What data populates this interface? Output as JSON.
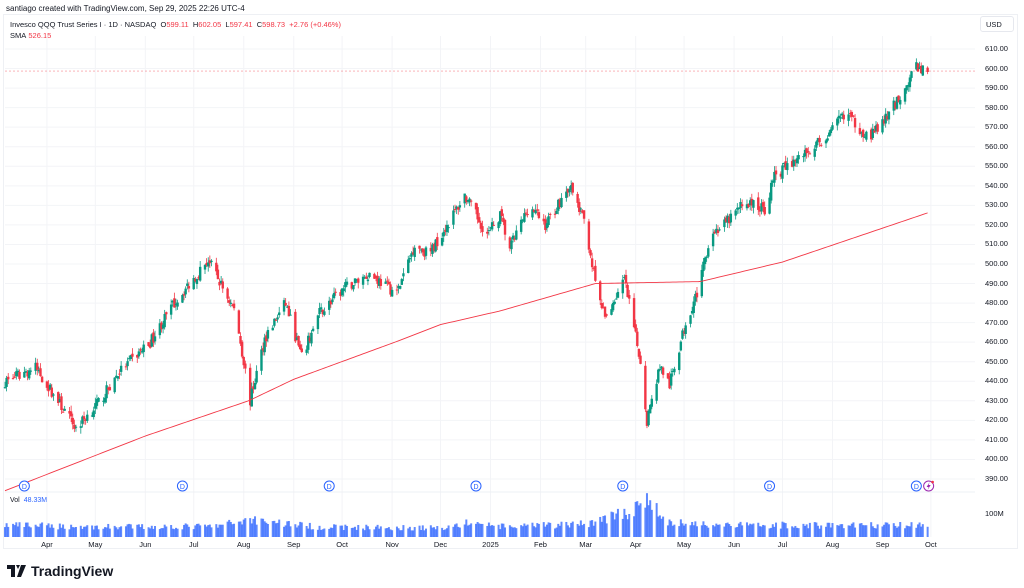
{
  "credit": "santiago created with TradingView.com, Sep 29, 2025 22:26 UTC-4",
  "legend": {
    "symbol": "Invesco QQQ Trust Series I · 1D · NASDAQ",
    "o_label": "O",
    "o": "599.11",
    "h_label": "H",
    "h": "602.05",
    "l_label": "L",
    "l": "597.41",
    "c_label": "C",
    "c": "598.73",
    "change": "+2.76 (+0.46%)",
    "sma_label": "SMA",
    "sma": "526.15"
  },
  "currency": "USD",
  "volume": {
    "label": "Vol",
    "value": "48.33M",
    "axis_label": "100M"
  },
  "logo": "TradingView",
  "colors": {
    "up": "#089981",
    "down": "#f23645",
    "sma": "#f23645",
    "volume": "#2962ff",
    "dividend": "#2962ff",
    "earnings": "#9c27b0"
  },
  "chart_data": {
    "type": "candlestick",
    "title": "Invesco QQQ Trust Series I · 1D · NASDAQ",
    "ylim": [
      385,
      615
    ],
    "y_ticks": [
      "610.00",
      "600.00",
      "590.00",
      "580.00",
      "570.00",
      "560.00",
      "550.00",
      "540.00",
      "530.00",
      "520.00",
      "510.00",
      "500.00",
      "490.00",
      "480.00",
      "470.00",
      "460.00",
      "450.00",
      "440.00",
      "430.00",
      "420.00",
      "410.00",
      "400.00",
      "390.00"
    ],
    "x_ticks": [
      {
        "label": "Apr",
        "date": "2024-04-01"
      },
      {
        "label": "May",
        "date": "2024-05-01"
      },
      {
        "label": "Jun",
        "date": "2024-06-01"
      },
      {
        "label": "Jul",
        "date": "2024-07-01"
      },
      {
        "label": "Aug",
        "date": "2024-08-01"
      },
      {
        "label": "Sep",
        "date": "2024-09-01"
      },
      {
        "label": "Oct",
        "date": "2024-10-01"
      },
      {
        "label": "Nov",
        "date": "2024-11-01"
      },
      {
        "label": "Dec",
        "date": "2024-12-01"
      },
      {
        "label": "2025",
        "date": "2025-01-01"
      },
      {
        "label": "Feb",
        "date": "2025-02-01"
      },
      {
        "label": "Mar",
        "date": "2025-03-01"
      },
      {
        "label": "Apr",
        "date": "2025-04-01"
      },
      {
        "label": "May",
        "date": "2025-05-01"
      },
      {
        "label": "Jun",
        "date": "2025-06-01"
      },
      {
        "label": "Jul",
        "date": "2025-07-01"
      },
      {
        "label": "Aug",
        "date": "2025-08-01"
      },
      {
        "label": "Sep",
        "date": "2025-09-01"
      },
      {
        "label": "Oct",
        "date": "2025-10-01"
      }
    ],
    "date_range": [
      "2024-03-06",
      "2025-09-29"
    ],
    "price_keypoints": [
      [
        "2024-03-06",
        440
      ],
      [
        "2024-03-25",
        447
      ],
      [
        "2024-04-19",
        416
      ],
      [
        "2024-05-04",
        430
      ],
      [
        "2024-05-16",
        445
      ],
      [
        "2024-06-04",
        460
      ],
      [
        "2024-06-19",
        480
      ],
      [
        "2024-07-10",
        502
      ],
      [
        "2024-07-27",
        475
      ],
      [
        "2024-08-05",
        430
      ],
      [
        "2024-08-14",
        462
      ],
      [
        "2024-08-27",
        480
      ],
      [
        "2024-09-06",
        452
      ],
      [
        "2024-09-17",
        475
      ],
      [
        "2024-10-03",
        488
      ],
      [
        "2024-10-18",
        495
      ],
      [
        "2024-11-04",
        485
      ],
      [
        "2024-11-15",
        510
      ],
      [
        "2024-11-24",
        505
      ],
      [
        "2024-12-16",
        535
      ],
      [
        "2024-12-30",
        515
      ],
      [
        "2025-01-07",
        525
      ],
      [
        "2025-01-13",
        508
      ],
      [
        "2025-01-25",
        530
      ],
      [
        "2025-02-04",
        520
      ],
      [
        "2025-02-19",
        540
      ],
      [
        "2025-03-01",
        520
      ],
      [
        "2025-03-07",
        490
      ],
      [
        "2025-03-13",
        472
      ],
      [
        "2025-03-25",
        492
      ],
      [
        "2025-04-04",
        450
      ],
      [
        "2025-04-08",
        420
      ],
      [
        "2025-04-16",
        448
      ],
      [
        "2025-04-22",
        438
      ],
      [
        "2025-05-02",
        470
      ],
      [
        "2025-05-11",
        490
      ],
      [
        "2025-05-17",
        515
      ],
      [
        "2025-05-26",
        520
      ],
      [
        "2025-06-08",
        532
      ],
      [
        "2025-06-20",
        528
      ],
      [
        "2025-06-26",
        545
      ],
      [
        "2025-07-12",
        555
      ],
      [
        "2025-07-30",
        566
      ],
      [
        "2025-08-09",
        578
      ],
      [
        "2025-08-17",
        570
      ],
      [
        "2025-08-24",
        565
      ],
      [
        "2025-09-03",
        574
      ],
      [
        "2025-09-15",
        590
      ],
      [
        "2025-09-22",
        601
      ],
      [
        "2025-09-29",
        598.73
      ]
    ],
    "sma_keypoints": [
      [
        "2024-03-06",
        384
      ],
      [
        "2024-06-01",
        412
      ],
      [
        "2024-08-04",
        430
      ],
      [
        "2024-09-01",
        441
      ],
      [
        "2024-11-06",
        461
      ],
      [
        "2024-12-01",
        469
      ],
      [
        "2025-01-07",
        476
      ],
      [
        "2025-03-07",
        490
      ],
      [
        "2025-05-11",
        491
      ],
      [
        "2025-07-01",
        501
      ],
      [
        "2025-09-29",
        526.15
      ]
    ],
    "volume_keypoints_millions": [
      [
        "2024-03-06",
        50
      ],
      [
        "2024-05-01",
        42
      ],
      [
        "2024-07-15",
        45
      ],
      [
        "2024-08-05",
        75
      ],
      [
        "2024-09-15",
        42
      ],
      [
        "2024-12-01",
        38
      ],
      [
        "2024-12-20",
        60
      ],
      [
        "2025-01-10",
        42
      ],
      [
        "2025-03-01",
        55
      ],
      [
        "2025-04-04",
        120
      ],
      [
        "2025-04-08",
        165
      ],
      [
        "2025-04-20",
        60
      ],
      [
        "2025-06-01",
        50
      ],
      [
        "2025-09-29",
        48.33
      ]
    ],
    "last_price": 598.73,
    "dividend_marker": "D",
    "dividend_dates": [
      "2024-03-18",
      "2024-06-24",
      "2024-09-23",
      "2024-12-23",
      "2025-03-24",
      "2025-06-23",
      "2025-09-22"
    ]
  }
}
